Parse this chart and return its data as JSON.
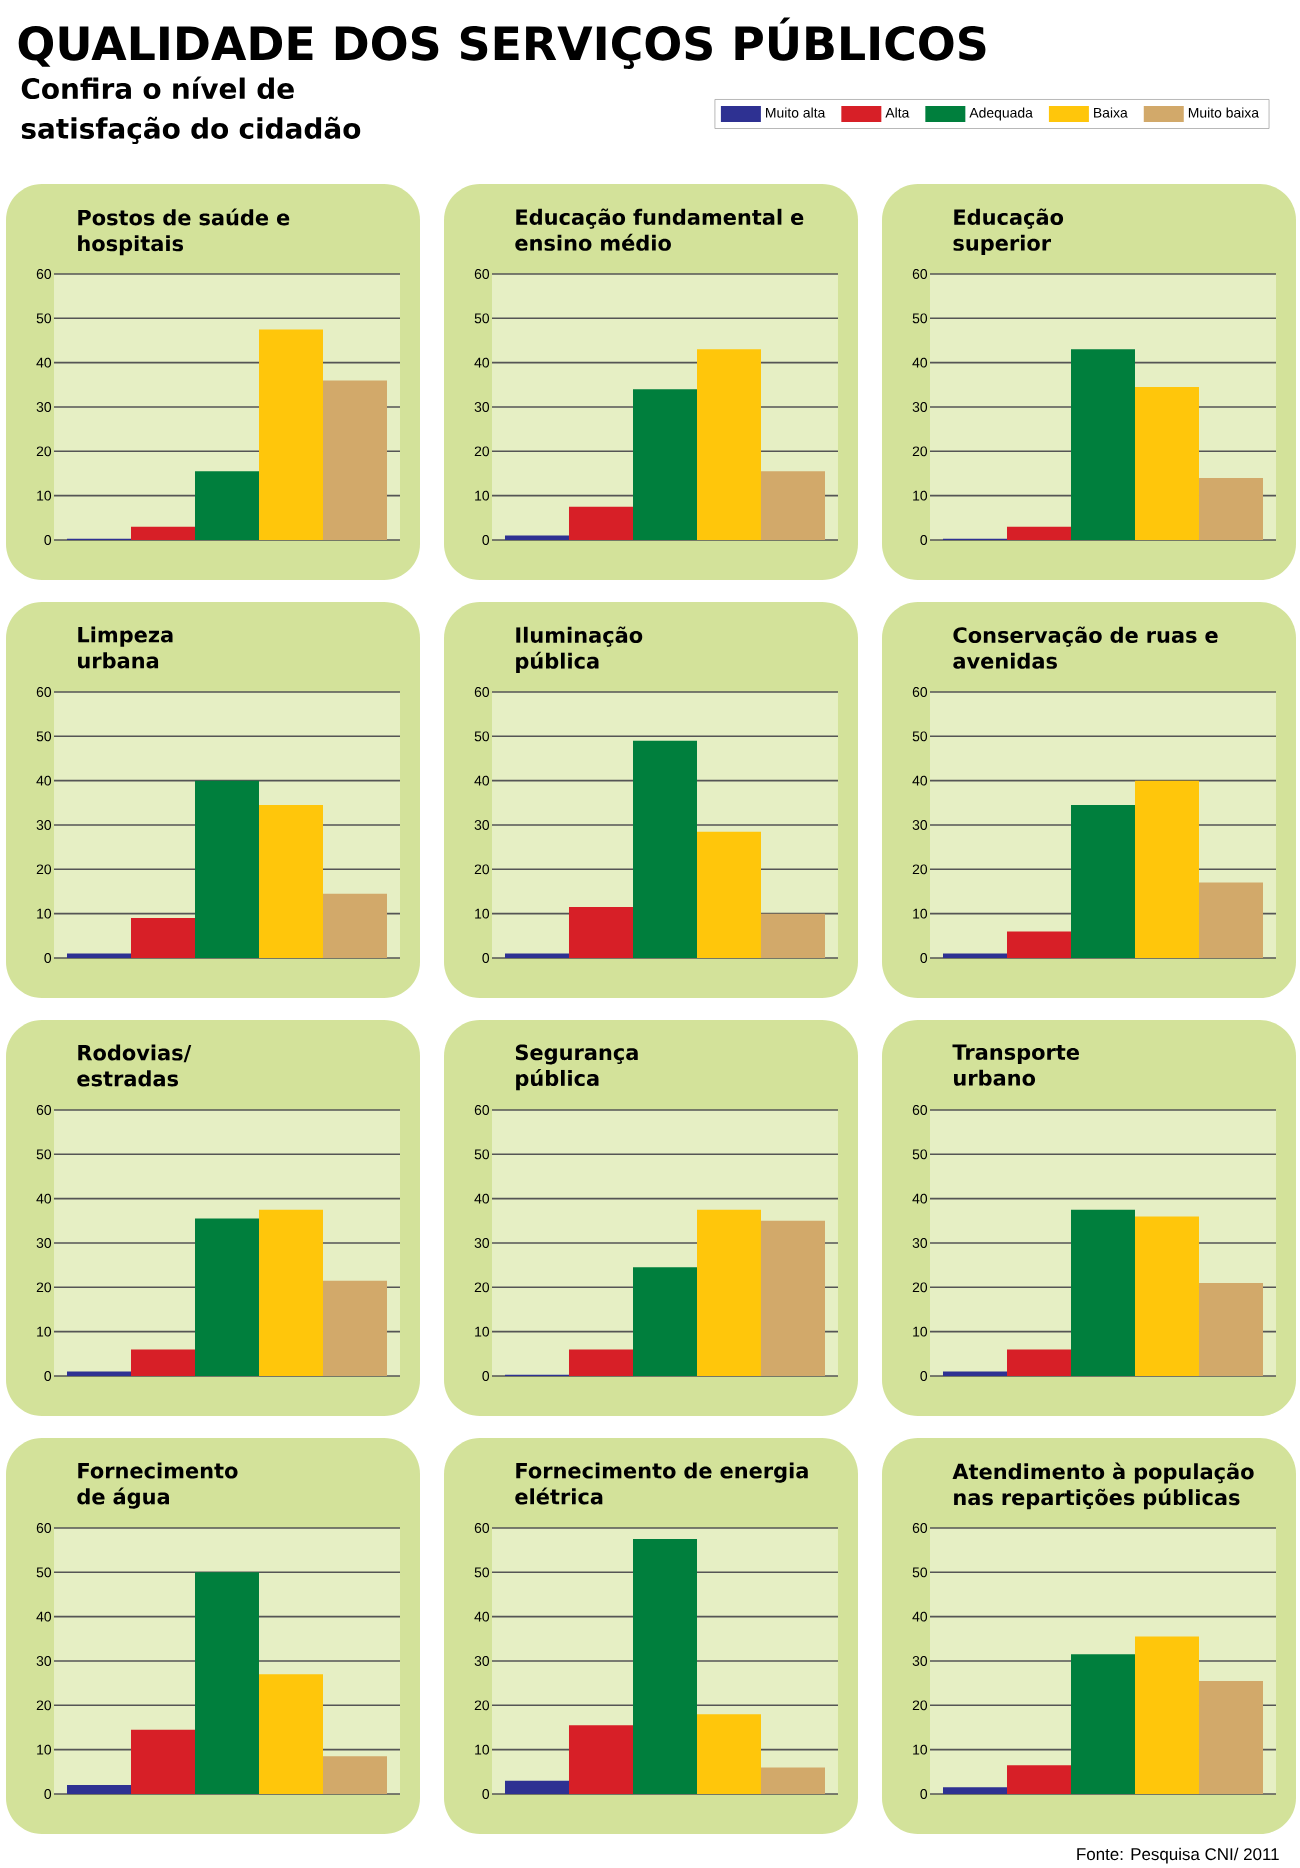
{
  "chart_data": [
    {
      "type": "other",
      "title": "QUALIDADE DOS SERVIÇOS PÚBLICOS",
      "subtitle": "Confira o nível de satisfação do cidadão",
      "annotations": [
        "Fonte: Pesquisa CNI/ 2011"
      ]
    },
    {
      "type": "bar",
      "title": "Postos de saúde e hospitais",
      "categories": [
        null
      ],
      "legend": "top right",
      "ylim": [
        0,
        60
      ],
      "yticks": [
        0,
        10,
        20,
        30,
        40,
        50,
        60
      ],
      "grid": "y",
      "series": [
        {
          "name": "Muito alta",
          "color": "#2e3192",
          "values": [
            0.3
          ]
        },
        {
          "name": "Alta",
          "color": "#d71f27",
          "values": [
            3
          ]
        },
        {
          "name": "Adequada",
          "color": "#007f3d",
          "values": [
            15.5
          ]
        },
        {
          "name": "Baixa",
          "color": "#ffc60b",
          "values": [
            47.5
          ]
        },
        {
          "name": "Muito baixa",
          "color": "#d2a96a",
          "values": [
            36
          ]
        }
      ]
    },
    {
      "type": "bar",
      "title": "Educação fundamental e ensino médio",
      "categories": [
        null
      ],
      "ylim": [
        0,
        60
      ],
      "yticks": [
        0,
        10,
        20,
        30,
        40,
        50,
        60
      ],
      "grid": "y",
      "series": [
        {
          "color": "#2e3192",
          "values": [
            1
          ]
        },
        {
          "color": "#d71f27",
          "values": [
            7.5
          ]
        },
        {
          "color": "#007f3d",
          "values": [
            34
          ]
        },
        {
          "color": "#ffc60b",
          "values": [
            43
          ]
        },
        {
          "color": "#d2a96a",
          "values": [
            15.5
          ]
        }
      ]
    },
    {
      "type": "bar",
      "title": "Educação superior",
      "categories": [
        null
      ],
      "ylim": [
        0,
        60
      ],
      "yticks": [
        0,
        10,
        20,
        30,
        40,
        50,
        60
      ],
      "grid": "y",
      "series": [
        {
          "color": "#2e3192",
          "values": [
            0.3
          ]
        },
        {
          "color": "#d71f27",
          "values": [
            3
          ]
        },
        {
          "color": "#007f3d",
          "values": [
            43
          ]
        },
        {
          "color": "#ffc60b",
          "values": [
            34.5
          ]
        },
        {
          "color": "#d2a96a",
          "values": [
            14
          ]
        }
      ]
    },
    {
      "type": "bar",
      "title": "Limpeza urbana",
      "categories": [
        null
      ],
      "ylim": [
        0,
        60
      ],
      "yticks": [
        0,
        10,
        20,
        30,
        40,
        50,
        60
      ],
      "grid": "y",
      "series": [
        {
          "color": "#2e3192",
          "values": [
            1
          ]
        },
        {
          "color": "#d71f27",
          "values": [
            9
          ]
        },
        {
          "color": "#007f3d",
          "values": [
            40
          ]
        },
        {
          "color": "#ffc60b",
          "values": [
            34.5
          ]
        },
        {
          "color": "#d2a96a",
          "values": [
            14.5
          ]
        }
      ]
    },
    {
      "type": "bar",
      "title": "Iluminação pública",
      "categories": [
        null
      ],
      "ylim": [
        0,
        60
      ],
      "yticks": [
        0,
        10,
        20,
        30,
        40,
        50,
        60
      ],
      "grid": "y",
      "series": [
        {
          "color": "#2e3192",
          "values": [
            1
          ]
        },
        {
          "color": "#d71f27",
          "values": [
            11.5
          ]
        },
        {
          "color": "#007f3d",
          "values": [
            49
          ]
        },
        {
          "color": "#ffc60b",
          "values": [
            28.5
          ]
        },
        {
          "color": "#d2a96a",
          "values": [
            10
          ]
        }
      ]
    },
    {
      "type": "bar",
      "title": "Conservação de ruas e avenidas",
      "categories": [
        null
      ],
      "ylim": [
        0,
        60
      ],
      "yticks": [
        0,
        10,
        20,
        30,
        40,
        50,
        60
      ],
      "grid": "y",
      "series": [
        {
          "color": "#2e3192",
          "values": [
            1
          ]
        },
        {
          "color": "#d71f27",
          "values": [
            6
          ]
        },
        {
          "color": "#007f3d",
          "values": [
            34.5
          ]
        },
        {
          "color": "#ffc60b",
          "values": [
            40
          ]
        },
        {
          "color": "#d2a96a",
          "values": [
            17
          ]
        }
      ]
    },
    {
      "type": "bar",
      "title": "Rodovias/ estradas",
      "categories": [
        null
      ],
      "ylim": [
        0,
        60
      ],
      "yticks": [
        0,
        10,
        20,
        30,
        40,
        50,
        60
      ],
      "grid": "y",
      "series": [
        {
          "color": "#2e3192",
          "values": [
            1
          ]
        },
        {
          "color": "#d71f27",
          "values": [
            6
          ]
        },
        {
          "color": "#007f3d",
          "values": [
            35.5
          ]
        },
        {
          "color": "#ffc60b",
          "values": [
            37.5
          ]
        },
        {
          "color": "#d2a96a",
          "values": [
            21.5
          ]
        }
      ]
    },
    {
      "type": "bar",
      "title": "Segurança pública",
      "categories": [
        null
      ],
      "ylim": [
        0,
        60
      ],
      "yticks": [
        0,
        10,
        20,
        30,
        40,
        50,
        60
      ],
      "grid": "y",
      "series": [
        {
          "color": "#2e3192",
          "values": [
            0.3
          ]
        },
        {
          "color": "#d71f27",
          "values": [
            6
          ]
        },
        {
          "color": "#007f3d",
          "values": [
            24.5
          ]
        },
        {
          "color": "#ffc60b",
          "values": [
            37.5
          ]
        },
        {
          "color": "#d2a96a",
          "values": [
            35
          ]
        }
      ]
    },
    {
      "type": "bar",
      "title": "Transporte urbano",
      "categories": [
        null
      ],
      "ylim": [
        0,
        60
      ],
      "yticks": [
        0,
        10,
        20,
        30,
        40,
        50,
        60
      ],
      "grid": "y",
      "series": [
        {
          "color": "#2e3192",
          "values": [
            1
          ]
        },
        {
          "color": "#d71f27",
          "values": [
            6
          ]
        },
        {
          "color": "#007f3d",
          "values": [
            37.5
          ]
        },
        {
          "color": "#ffc60b",
          "values": [
            36
          ]
        },
        {
          "color": "#d2a96a",
          "values": [
            21
          ]
        }
      ]
    },
    {
      "type": "bar",
      "title": "Fornecimento de água",
      "categories": [
        null
      ],
      "ylim": [
        0,
        60
      ],
      "yticks": [
        0,
        10,
        20,
        30,
        40,
        50,
        60
      ],
      "grid": "y",
      "series": [
        {
          "color": "#2e3192",
          "values": [
            2
          ]
        },
        {
          "color": "#d71f27",
          "values": [
            14.5
          ]
        },
        {
          "color": "#007f3d",
          "values": [
            50
          ]
        },
        {
          "color": "#ffc60b",
          "values": [
            27
          ]
        },
        {
          "color": "#d2a96a",
          "values": [
            8.5
          ]
        }
      ]
    },
    {
      "type": "bar",
      "title": "Fornecimento de energia elétrica",
      "categories": [
        null
      ],
      "ylim": [
        0,
        60
      ],
      "yticks": [
        0,
        10,
        20,
        30,
        40,
        50,
        60
      ],
      "grid": "y",
      "series": [
        {
          "color": "#2e3192",
          "values": [
            3
          ]
        },
        {
          "color": "#d71f27",
          "values": [
            15.5
          ]
        },
        {
          "color": "#007f3d",
          "values": [
            57.5
          ]
        },
        {
          "color": "#ffc60b",
          "values": [
            18
          ]
        },
        {
          "color": "#d2a96a",
          "values": [
            6
          ]
        }
      ]
    },
    {
      "type": "bar",
      "title": "Atendimento à população nas repartições públicas",
      "categories": [
        null
      ],
      "ylim": [
        0,
        60
      ],
      "yticks": [
        0,
        10,
        20,
        30,
        40,
        50,
        60
      ],
      "grid": "y",
      "series": [
        {
          "color": "#2e3192",
          "values": [
            1.5
          ]
        },
        {
          "color": "#d71f27",
          "values": [
            6.5
          ]
        },
        {
          "color": "#007f3d",
          "values": [
            31.5
          ]
        },
        {
          "color": "#ffc60b",
          "values": [
            35.5
          ]
        },
        {
          "color": "#d2a96a",
          "values": [
            25.5
          ]
        }
      ]
    }
  ]
}
